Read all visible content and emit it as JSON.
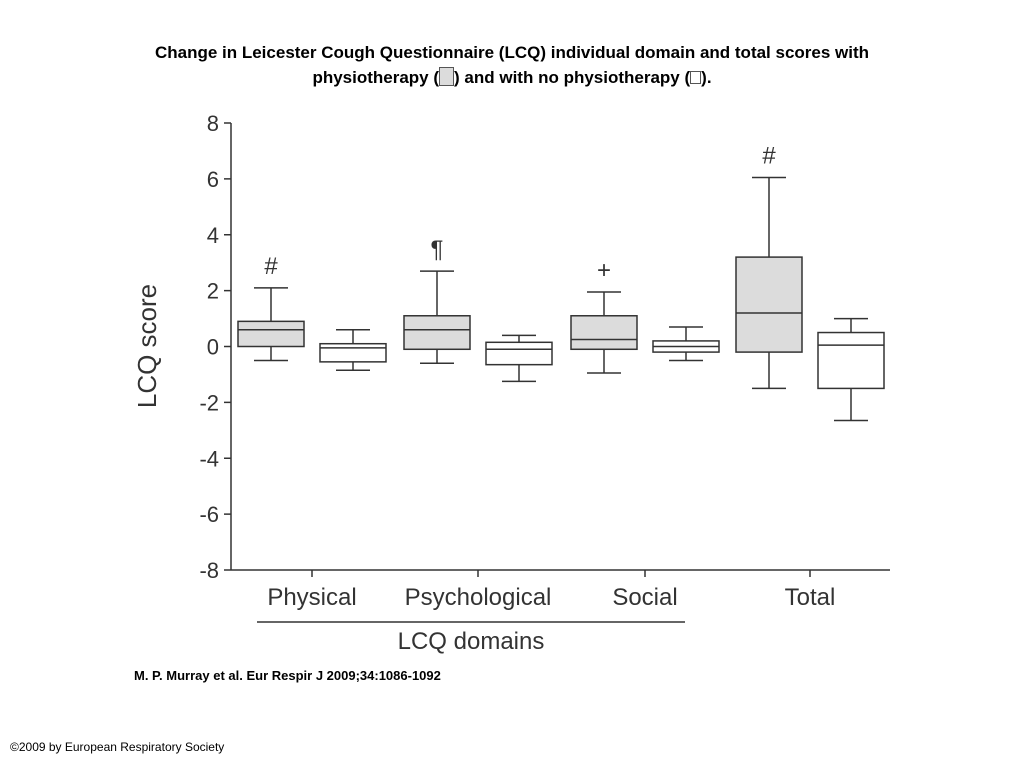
{
  "header": {
    "title_line1": "Change in Leicester Cough Questionnaire (LCQ) individual domain and total scores with",
    "title_line2_a": "physiotherapy (",
    "title_line2_b": ") and with no physiotherapy (",
    "title_line2_c": ")."
  },
  "citation": "M. P. Murray et al. Eur Respir J 2009;34:1086-1092",
  "copyright": "©2009 by European Respiratory Society",
  "colors": {
    "physio_fill": "#dcdcdc",
    "no_physio_fill": "#ffffff",
    "stroke": "#333333"
  },
  "chart_data": {
    "type": "boxplot",
    "ylabel": "LCQ score",
    "xlabel": "LCQ domains",
    "ylim": [
      -8,
      8
    ],
    "yticks": [
      8,
      6,
      4,
      2,
      0,
      -2,
      -4,
      -6,
      -8
    ],
    "ytick_labels": [
      "8",
      "6",
      "4",
      "2",
      "0",
      "-2",
      "-4",
      "-6",
      "-8"
    ],
    "categories": [
      "Physical",
      "Psychological",
      "Social",
      "Total"
    ],
    "series": [
      {
        "name": "physiotherapy",
        "fill": "#dcdcdc",
        "boxes": [
          {
            "min": -0.5,
            "q1": 0.0,
            "median": 0.6,
            "q3": 0.9,
            "max": 2.1
          },
          {
            "min": -0.6,
            "q1": -0.1,
            "median": 0.6,
            "q3": 1.1,
            "max": 2.7
          },
          {
            "min": -0.95,
            "q1": -0.1,
            "median": 0.25,
            "q3": 1.1,
            "max": 1.95
          },
          {
            "min": -1.5,
            "q1": -0.2,
            "median": 1.2,
            "q3": 3.2,
            "max": 6.05
          }
        ]
      },
      {
        "name": "no physiotherapy",
        "fill": "#ffffff",
        "boxes": [
          {
            "min": -0.85,
            "q1": -0.55,
            "median": -0.05,
            "q3": 0.1,
            "max": 0.6
          },
          {
            "min": -1.25,
            "q1": -0.65,
            "median": -0.1,
            "q3": 0.15,
            "max": 0.4
          },
          {
            "min": -0.5,
            "q1": -0.2,
            "median": 0.0,
            "q3": 0.2,
            "max": 0.7
          },
          {
            "min": -2.65,
            "q1": -1.5,
            "median": 0.05,
            "q3": 0.5,
            "max": 1.0
          }
        ]
      }
    ],
    "annotations": [
      {
        "category": "Physical",
        "text": "#"
      },
      {
        "category": "Psychological",
        "text": "¶"
      },
      {
        "category": "Social",
        "text": "+"
      },
      {
        "category": "Total",
        "text": "#"
      }
    ],
    "legend": "none",
    "grid": false
  }
}
